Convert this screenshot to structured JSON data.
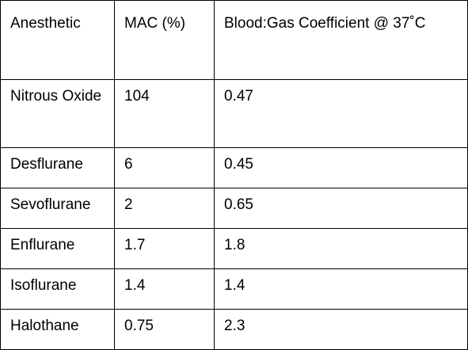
{
  "table": {
    "headers": [
      "Anesthetic",
      "MAC (%)",
      "Blood:Gas Coefficient @ 37˚C"
    ],
    "rows": [
      [
        "Nitrous Oxide",
        "104",
        "0.47"
      ],
      [
        "Desflurane",
        "6",
        "0.45"
      ],
      [
        "Sevoflurane",
        "2",
        "0.65"
      ],
      [
        "Enflurane",
        "1.7",
        "1.8"
      ],
      [
        "Isoflurane",
        "1.4",
        "1.4"
      ],
      [
        "Halothane",
        "0.75",
        "2.3"
      ]
    ]
  }
}
